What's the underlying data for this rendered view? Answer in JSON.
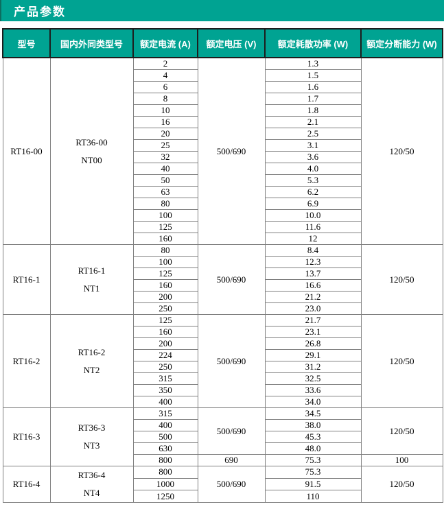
{
  "page_title": "产品参数",
  "theme": {
    "accent": "#00A392",
    "header_text": "#FFFFFF",
    "header_border": "#1D1D1D",
    "body_border": "#7E7E7E"
  },
  "table": {
    "columns": [
      "型号",
      "国内外同类型号",
      "额定电流 (A)",
      "额定电压 (V)",
      "额定耗散功率 (W)",
      "额定分断能力 (W)"
    ],
    "groups": [
      {
        "model": "RT16-00",
        "equivalent": [
          "RT36-00",
          "NT00"
        ],
        "segments": [
          {
            "voltage": "500/690",
            "breaking": "120/50",
            "rows": [
              [
                "2",
                "1.3"
              ],
              [
                "4",
                "1.5"
              ],
              [
                "6",
                "1.6"
              ],
              [
                "8",
                "1.7"
              ],
              [
                "10",
                "1.8"
              ],
              [
                "16",
                "2.1"
              ],
              [
                "20",
                "2.5"
              ],
              [
                "25",
                "3.1"
              ],
              [
                "32",
                "3.6"
              ],
              [
                "40",
                "4.0"
              ],
              [
                "50",
                "5.3"
              ],
              [
                "63",
                "6.2"
              ],
              [
                "80",
                "6.9"
              ],
              [
                "100",
                "10.0"
              ],
              [
                "125",
                "11.6"
              ],
              [
                "160",
                "12"
              ]
            ]
          }
        ]
      },
      {
        "model": "RT16-1",
        "equivalent": [
          "RT16-1",
          "NT1"
        ],
        "segments": [
          {
            "voltage": "500/690",
            "breaking": "120/50",
            "rows": [
              [
                "80",
                "8.4"
              ],
              [
                "100",
                "12.3"
              ],
              [
                "125",
                "13.7"
              ],
              [
                "160",
                "16.6"
              ],
              [
                "200",
                "21.2"
              ],
              [
                "250",
                "23.0"
              ]
            ]
          }
        ]
      },
      {
        "model": "RT16-2",
        "equivalent": [
          "RT16-2",
          "NT2"
        ],
        "segments": [
          {
            "voltage": "500/690",
            "breaking": "120/50",
            "rows": [
              [
                "125",
                "21.7"
              ],
              [
                "160",
                "23.1"
              ],
              [
                "200",
                "26.8"
              ],
              [
                "224",
                "29.1"
              ],
              [
                "250",
                "31.2"
              ],
              [
                "315",
                "32.5"
              ],
              [
                "350",
                "33.6"
              ],
              [
                "400",
                "34.0"
              ]
            ]
          }
        ]
      },
      {
        "model": "RT16-3",
        "equivalent": [
          "RT36-3",
          "NT3"
        ],
        "segments": [
          {
            "voltage": "500/690",
            "breaking": "120/50",
            "rows": [
              [
                "315",
                "34.5"
              ],
              [
                "400",
                "38.0"
              ],
              [
                "500",
                "45.3"
              ],
              [
                "630",
                "48.0"
              ]
            ]
          },
          {
            "voltage": "690",
            "breaking": "100",
            "rows": [
              [
                "800",
                "75.3"
              ]
            ]
          }
        ]
      },
      {
        "model": "RT16-4",
        "equivalent": [
          "RT36-4",
          "NT4"
        ],
        "segments": [
          {
            "voltage": "500/690",
            "breaking": "120/50",
            "rows": [
              [
                "800",
                "75.3"
              ],
              [
                "1000",
                "91.5"
              ],
              [
                "1250",
                "110"
              ]
            ]
          }
        ]
      }
    ]
  }
}
